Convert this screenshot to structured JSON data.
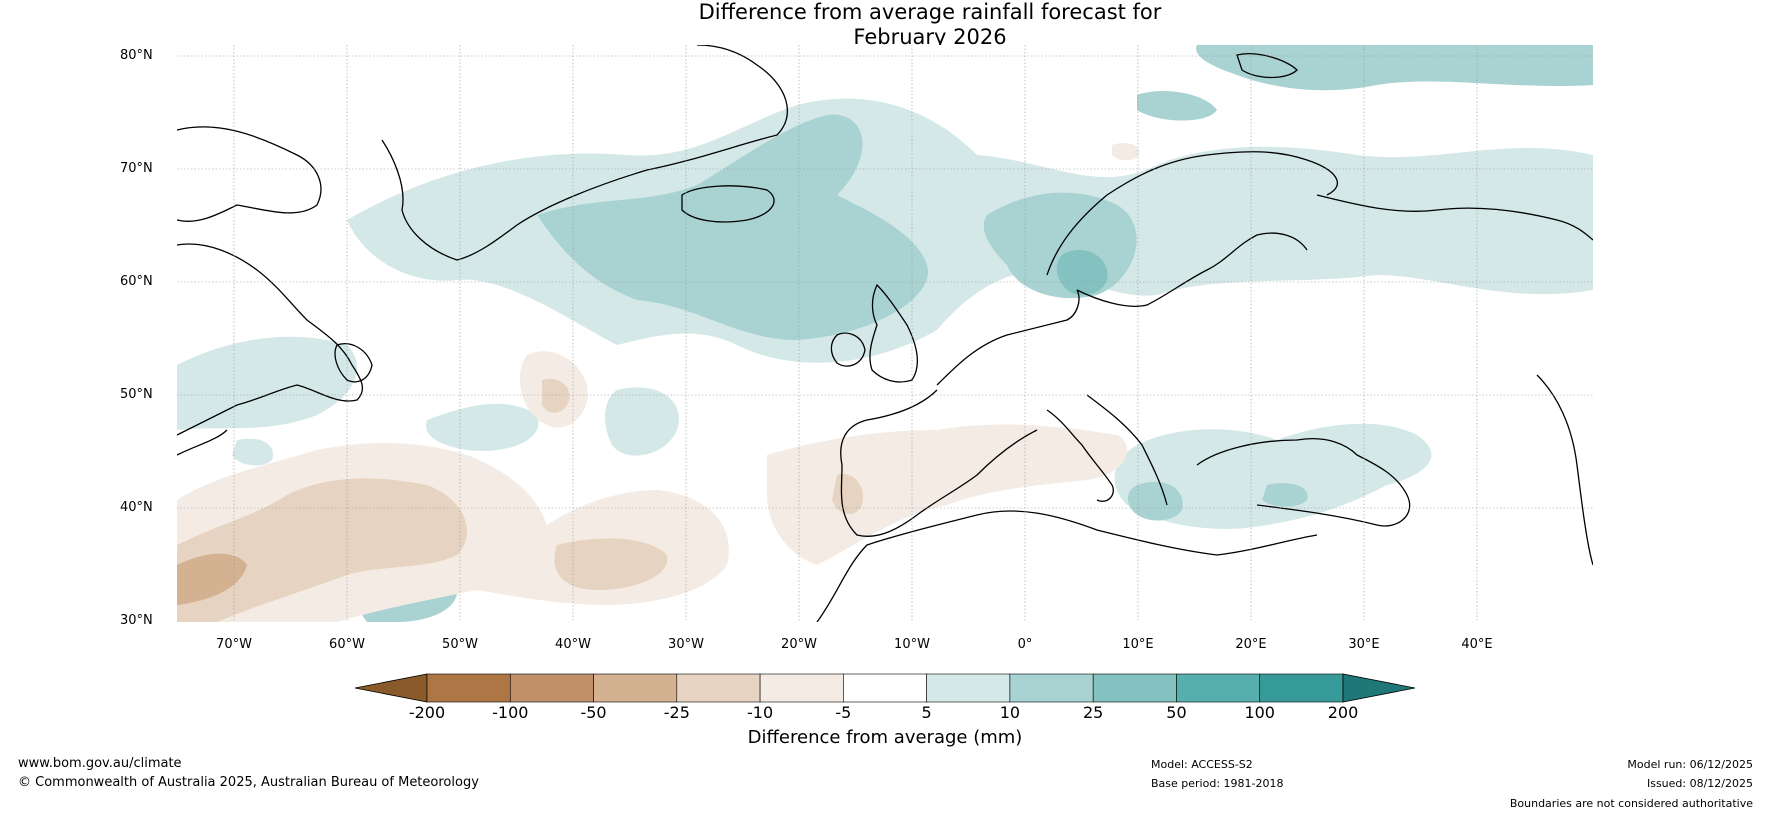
{
  "title": {
    "line1": "Difference from average rainfall forecast for",
    "line2": "February 2026"
  },
  "lat_labels": [
    "80°N",
    "70°N",
    "60°N",
    "50°N",
    "40°N",
    "30°N"
  ],
  "lon_labels": [
    "70°W",
    "60°W",
    "50°W",
    "40°W",
    "30°W",
    "20°W",
    "10°W",
    "0°",
    "10°E",
    "20°E",
    "30°E",
    "40°E"
  ],
  "colorbar": {
    "ticks": [
      "-200",
      "-100",
      "-50",
      "-25",
      "-10",
      "-5",
      "5",
      "10",
      "25",
      "50",
      "100",
      "200"
    ],
    "colors": [
      "#8a5a2b",
      "#ad7644",
      "#c19068",
      "#d4b190",
      "#e7d3c1",
      "#f4ece4",
      "#ffffff",
      "#d3e8e7",
      "#a9d3d2",
      "#83c2c0",
      "#58aeac",
      "#369b98",
      "#1f7877"
    ],
    "label": "Difference from average (mm)"
  },
  "footer": {
    "url": "www.bom.gov.au/climate",
    "copyright": "© Commonwealth of Australia 2025, Australian Bureau of Meteorology",
    "model": "Model: ACCESS-S2",
    "base_period": "Base period: 1981-2018",
    "model_run": "Model run: 06/12/2025",
    "issued": "Issued: 08/12/2025",
    "disclaimer": "Boundaries are not considered authoritative"
  }
}
